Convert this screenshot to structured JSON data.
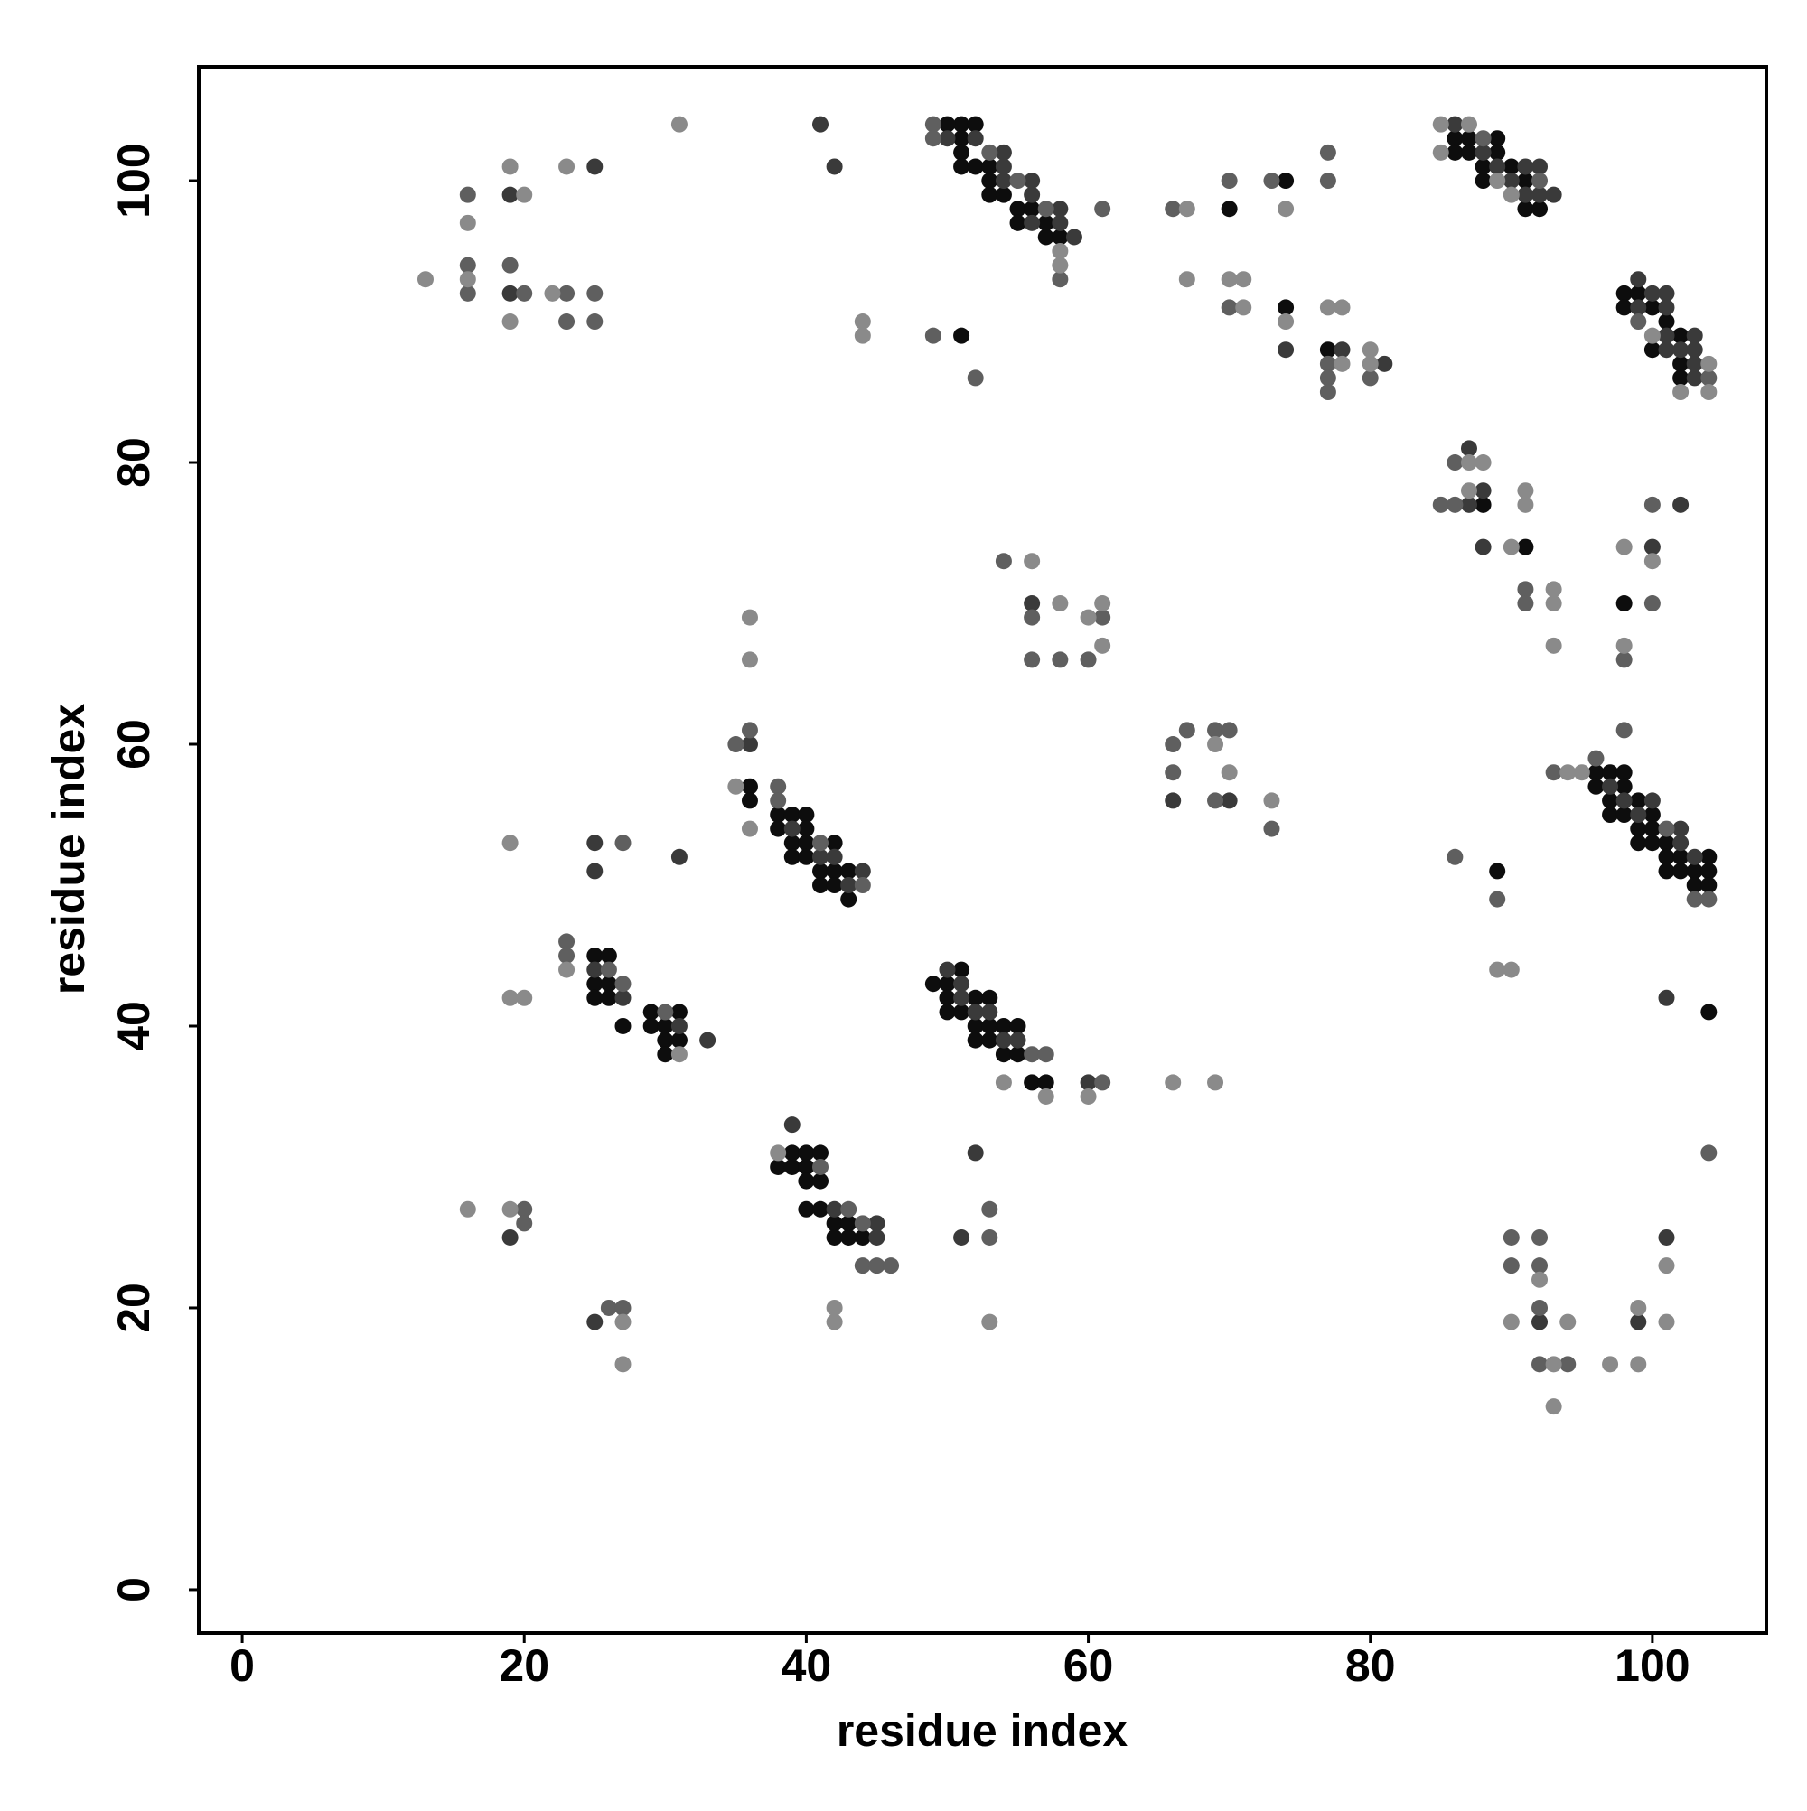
{
  "chart_data": {
    "type": "scatter",
    "x_label": "residue index",
    "y_label": "residue index",
    "xlim": [
      -3.08,
      108.08
    ],
    "ylim": [
      -3.08,
      108.08
    ],
    "xticks": [
      0,
      20,
      40,
      60,
      80,
      100
    ],
    "yticks": [
      0,
      20,
      40,
      60,
      80,
      100
    ],
    "grid": false,
    "series": [
      {
        "color": "#0d0d0d",
        "x": [
          51,
          51,
          51,
          51,
          51,
          50,
          52,
          52,
          53,
          53,
          53,
          54,
          55,
          55,
          56,
          57,
          57,
          58,
          70,
          74,
          74,
          77,
          86,
          86,
          87,
          87,
          88,
          88,
          89,
          89,
          90,
          91,
          91,
          92,
          98,
          98,
          99,
          100,
          100,
          101,
          102,
          102,
          102,
          88,
          91,
          98,
          36,
          36,
          38,
          38,
          39,
          39,
          39,
          40,
          40,
          40,
          40,
          41,
          41,
          42,
          42,
          42,
          43,
          43,
          96,
          96,
          97,
          97,
          97,
          98,
          98,
          98,
          99,
          99,
          99,
          100,
          100,
          100,
          101,
          101,
          101,
          102,
          102,
          103,
          103,
          104,
          104,
          104,
          104,
          89,
          25,
          25,
          25,
          26,
          26,
          26,
          27,
          29,
          29,
          30,
          30,
          30,
          31,
          31,
          49,
          50,
          50,
          50,
          51,
          51,
          52,
          52,
          52,
          53,
          53,
          53,
          54,
          54,
          55,
          55,
          56,
          57,
          38,
          39,
          39,
          40,
          40,
          40,
          40,
          41,
          41,
          41,
          42,
          42,
          43,
          43,
          44
        ],
        "values": [
          104,
          103,
          102,
          101,
          89,
          104,
          104,
          101,
          101,
          100,
          99,
          99,
          98,
          97,
          98,
          97,
          96,
          96,
          98,
          100,
          91,
          88,
          103,
          102,
          103,
          102,
          101,
          100,
          103,
          102,
          101,
          100,
          98,
          98,
          92,
          91,
          92,
          91,
          88,
          90,
          89,
          87,
          86,
          77,
          74,
          70,
          57,
          56,
          55,
          54,
          55,
          53,
          52,
          55,
          54,
          53,
          52,
          51,
          50,
          53,
          51,
          50,
          51,
          49,
          58,
          57,
          58,
          56,
          55,
          58,
          57,
          55,
          56,
          54,
          53,
          55,
          54,
          53,
          53,
          52,
          51,
          52,
          51,
          51,
          50,
          52,
          51,
          50,
          41,
          51,
          45,
          43,
          42,
          45,
          43,
          42,
          40,
          41,
          40,
          40,
          39,
          38,
          41,
          39,
          43,
          43,
          42,
          41,
          44,
          41,
          42,
          40,
          39,
          42,
          40,
          39,
          40,
          38,
          40,
          38,
          36,
          36,
          30,
          31,
          30,
          31,
          30,
          29,
          27,
          31,
          29,
          27,
          26,
          25,
          26,
          25,
          25
        ]
      },
      {
        "color": "#3a3a3a",
        "x": [
          19,
          19,
          25,
          41,
          42,
          50,
          52,
          54,
          54,
          54,
          56,
          56,
          56,
          58,
          58,
          59,
          74,
          78,
          81,
          86,
          88,
          89,
          90,
          91,
          91,
          92,
          92,
          93,
          99,
          99,
          100,
          101,
          101,
          101,
          101,
          102,
          103,
          103,
          103,
          103,
          87,
          87,
          88,
          88,
          100,
          102,
          56,
          36,
          39,
          41,
          42,
          43,
          44,
          66,
          70,
          97,
          98,
          99,
          100,
          102,
          102,
          103,
          101,
          25,
          25,
          31,
          25,
          27,
          31,
          33,
          50,
          51,
          51,
          52,
          53,
          54,
          55,
          60,
          39,
          42,
          45,
          45,
          19,
          25,
          51,
          52,
          92,
          99,
          101
        ],
        "values": [
          99,
          92,
          101,
          104,
          101,
          103,
          103,
          102,
          101,
          100,
          100,
          99,
          97,
          98,
          97,
          96,
          88,
          88,
          87,
          104,
          102,
          101,
          100,
          101,
          99,
          101,
          99,
          99,
          93,
          91,
          92,
          92,
          91,
          89,
          88,
          88,
          89,
          88,
          87,
          86,
          81,
          77,
          78,
          74,
          74,
          77,
          70,
          60,
          54,
          52,
          52,
          50,
          51,
          56,
          56,
          57,
          56,
          55,
          56,
          54,
          53,
          52,
          42,
          53,
          51,
          52,
          44,
          42,
          40,
          39,
          44,
          43,
          42,
          41,
          41,
          39,
          39,
          36,
          33,
          27,
          26,
          25,
          25,
          19,
          25,
          31,
          19,
          19,
          25
        ]
      },
      {
        "color": "#5f5f5f",
        "x": [
          16,
          16,
          16,
          19,
          20,
          23,
          23,
          25,
          25,
          49,
          49,
          49,
          52,
          53,
          55,
          57,
          58,
          61,
          66,
          70,
          70,
          73,
          77,
          77,
          77,
          77,
          77,
          80,
          88,
          92,
          99,
          104,
          85,
          86,
          86,
          91,
          91,
          98,
          98,
          100,
          100,
          54,
          56,
          56,
          58,
          60,
          61,
          36,
          35,
          38,
          38,
          41,
          44,
          66,
          66,
          67,
          69,
          69,
          70,
          73,
          93,
          96,
          101,
          103,
          104,
          86,
          89,
          27,
          23,
          23,
          26,
          27,
          30,
          56,
          57,
          61,
          41,
          43,
          44,
          44,
          45,
          46,
          20,
          20,
          26,
          27,
          53,
          53,
          90,
          90,
          92,
          92,
          92,
          92,
          94,
          104
        ],
        "values": [
          99,
          94,
          92,
          94,
          92,
          92,
          90,
          92,
          90,
          104,
          103,
          89,
          86,
          102,
          100,
          98,
          93,
          98,
          98,
          100,
          91,
          100,
          102,
          100,
          87,
          86,
          85,
          86,
          103,
          100,
          90,
          86,
          77,
          80,
          77,
          71,
          70,
          66,
          61,
          77,
          70,
          73,
          69,
          66,
          66,
          66,
          69,
          61,
          60,
          57,
          56,
          53,
          50,
          60,
          58,
          61,
          61,
          56,
          61,
          54,
          58,
          59,
          54,
          49,
          49,
          52,
          49,
          53,
          46,
          45,
          44,
          43,
          41,
          38,
          38,
          36,
          30,
          27,
          26,
          23,
          23,
          23,
          27,
          26,
          20,
          20,
          27,
          25,
          25,
          23,
          25,
          23,
          20,
          16,
          16,
          31
        ]
      },
      {
        "color": "#8a8a8a",
        "x": [
          13,
          16,
          16,
          19,
          19,
          20,
          22,
          23,
          31,
          44,
          44,
          58,
          58,
          67,
          67,
          70,
          71,
          71,
          74,
          74,
          77,
          78,
          78,
          80,
          80,
          85,
          85,
          87,
          89,
          90,
          100,
          102,
          104,
          104,
          87,
          87,
          88,
          90,
          91,
          91,
          93,
          93,
          93,
          98,
          98,
          100,
          56,
          58,
          60,
          61,
          61,
          36,
          36,
          36,
          35,
          69,
          70,
          73,
          94,
          95,
          89,
          90,
          19,
          19,
          20,
          23,
          31,
          54,
          57,
          60,
          66,
          69,
          38,
          42,
          42,
          16,
          19,
          27,
          27,
          53,
          90,
          92,
          93,
          93,
          94,
          97,
          99,
          99,
          101,
          101
        ],
        "values": [
          93,
          97,
          93,
          101,
          90,
          99,
          92,
          101,
          104,
          90,
          89,
          95,
          94,
          98,
          93,
          93,
          93,
          91,
          98,
          90,
          91,
          91,
          87,
          88,
          87,
          104,
          102,
          104,
          100,
          99,
          89,
          85,
          87,
          85,
          80,
          78,
          80,
          74,
          78,
          77,
          71,
          70,
          67,
          74,
          67,
          73,
          73,
          70,
          69,
          70,
          67,
          69,
          66,
          54,
          57,
          60,
          58,
          56,
          58,
          58,
          44,
          44,
          53,
          42,
          42,
          44,
          38,
          36,
          35,
          35,
          36,
          36,
          31,
          20,
          19,
          27,
          27,
          19,
          16,
          19,
          19,
          22,
          16,
          13,
          19,
          16,
          20,
          16,
          23,
          19
        ]
      }
    ]
  }
}
